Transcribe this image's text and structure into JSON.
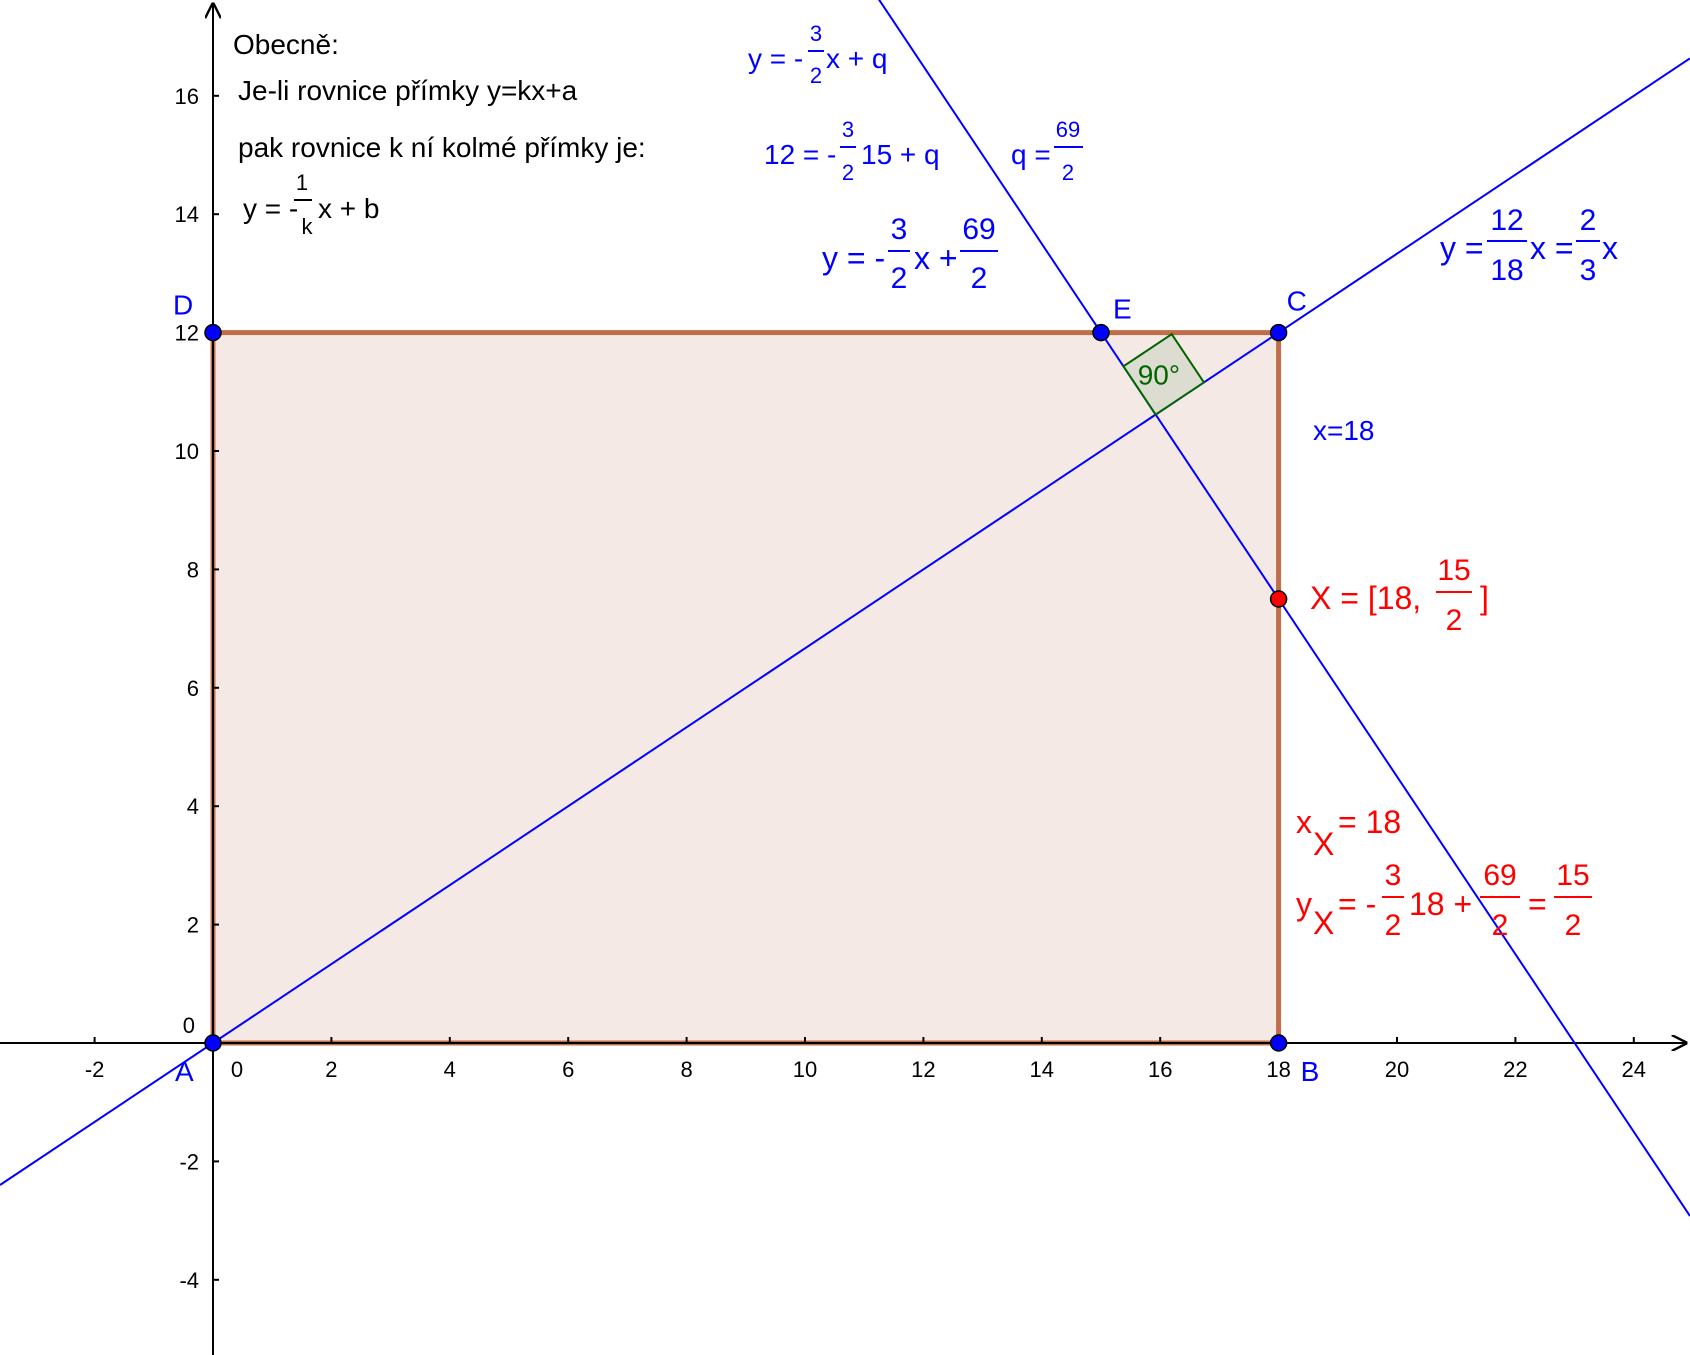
{
  "points": {
    "A": {
      "name": "A",
      "x": 0,
      "y": 0
    },
    "B": {
      "name": "B",
      "x": 18,
      "y": 0
    },
    "C": {
      "name": "C",
      "x": 18,
      "y": 12
    },
    "D": {
      "name": "D",
      "x": 0,
      "y": 12
    },
    "E": {
      "name": "E",
      "x": 15,
      "y": 12
    },
    "X": {
      "name": "X",
      "x": 18,
      "y": 7.5
    }
  },
  "axes": {
    "x_ticks": [
      "-2",
      "0",
      "2",
      "4",
      "6",
      "8",
      "10",
      "12",
      "14",
      "16",
      "18",
      "20",
      "22",
      "24"
    ],
    "y_ticks": [
      "-4",
      "-2",
      "0",
      "2",
      "4",
      "6",
      "8",
      "10",
      "12",
      "14",
      "16"
    ],
    "x_range": [
      -3.6,
      25
    ],
    "y_range": [
      -5.2,
      17.6
    ]
  },
  "lines": {
    "diagonal": {
      "slope": 0.6666667,
      "intercept": 0
    },
    "perpendicular": {
      "slope": -1.5,
      "intercept": 34.5
    }
  },
  "angle_label": "90°",
  "general_note": {
    "heading": "Obecně:",
    "line1": "Je-li  rovnice přímky    y=kx+a",
    "line2": "pak rovnice k ní kolmé přímky je:",
    "formula_prefix": "y = -",
    "frac_num": "1",
    "frac_den": "k",
    "formula_suffix": "x + b"
  },
  "eq_perp_general": {
    "prefix": "y = -",
    "num": "3",
    "den": "2",
    "suffix": "x + q"
  },
  "eq_subst": {
    "prefix": "12 = -",
    "num": "3",
    "den": "2",
    "suffix": "15 + q"
  },
  "eq_q": {
    "prefix": "q =",
    "num": "69",
    "den": "2"
  },
  "eq_perp_final": {
    "prefix": "y = -",
    "num1": "3",
    "den1": "2",
    "mid": "x +",
    "num2": "69",
    "den2": "2"
  },
  "eq_diag": {
    "prefix": "y =",
    "num1": "12",
    "den1": "18",
    "mid": "x =",
    "num2": "2",
    "den2": "3",
    "suffix": "x"
  },
  "eq_x18": "x=18",
  "x_coords": {
    "prefix": "X = [18,",
    "num": "15",
    "den": "2",
    "suffix": "]"
  },
  "xx_eq": {
    "x": "x",
    "sub": "X",
    "rest": "= 18"
  },
  "yx_eq": {
    "y": "y",
    "sub": "X",
    "eq": "= -",
    "num1": "3",
    "den1": "2",
    "mid": "18 +",
    "num2": "69",
    "den2": "2",
    "eq2": "=",
    "num3": "15",
    "den3": "2"
  },
  "colors": {
    "blue": "#0000ff",
    "red": "#ff0000",
    "fill": "#f5e9e6",
    "border": "#b5562e",
    "angle_fill": "#dcdcd0",
    "angle_stroke": "#006400"
  }
}
